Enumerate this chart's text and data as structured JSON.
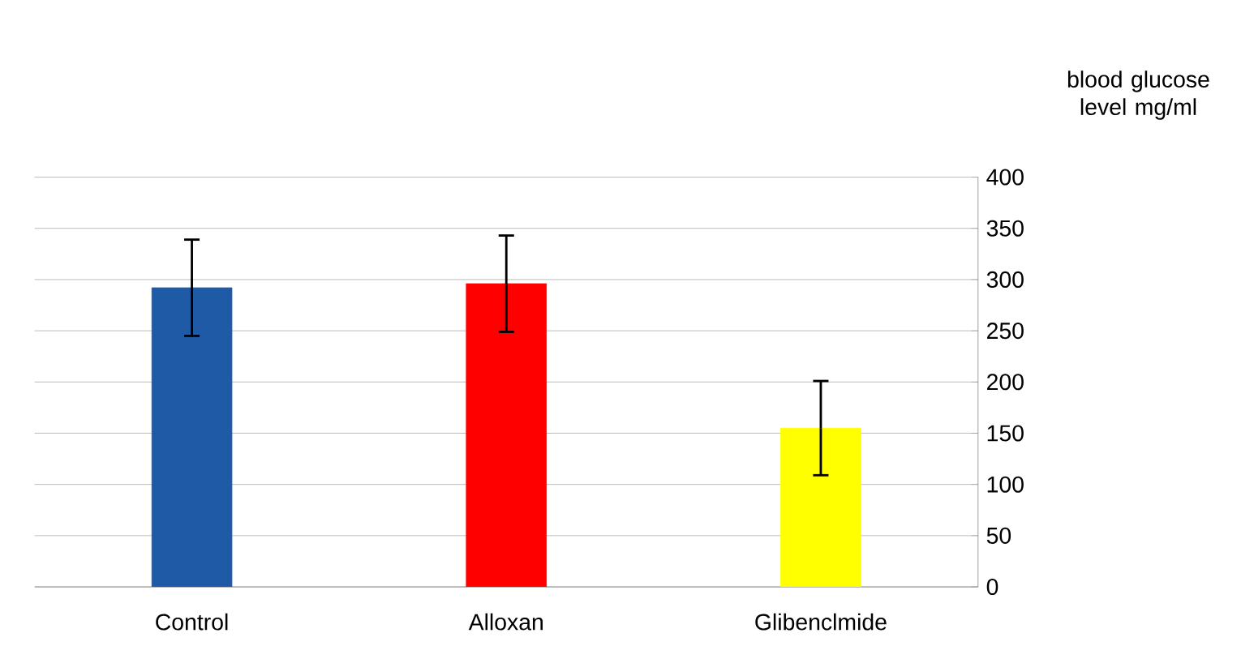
{
  "chart_data": {
    "type": "bar",
    "ylabel": "blood glucose level mg/ml",
    "categories": [
      "Control",
      "Alloxan",
      "Glibenclmide"
    ],
    "values": [
      292,
      296,
      155
    ],
    "errors": [
      47,
      47,
      46
    ],
    "colors": [
      "#1f5aa6",
      "#ff0000",
      "#ffff00"
    ],
    "ylim": [
      0,
      400
    ],
    "yticks": [
      0,
      50,
      100,
      150,
      200,
      250,
      300,
      350,
      400
    ],
    "grid": "y"
  }
}
